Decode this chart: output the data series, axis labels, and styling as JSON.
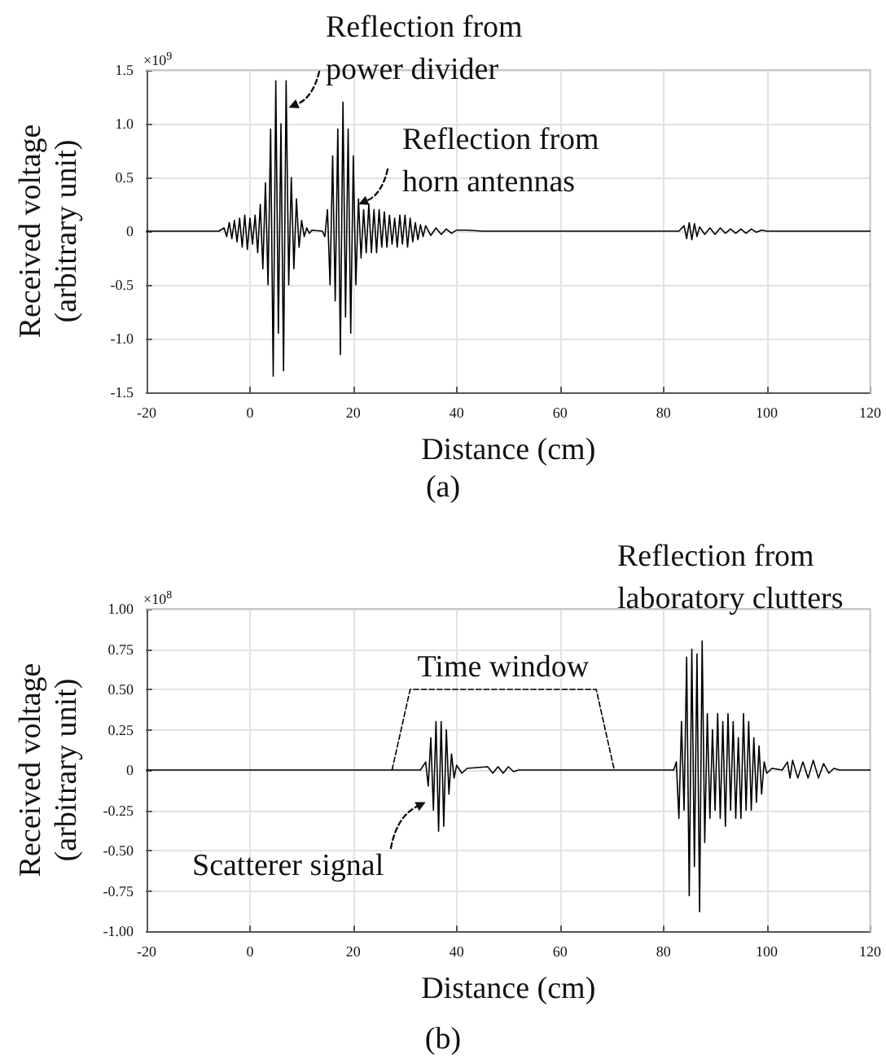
{
  "chart_data": [
    {
      "type": "line",
      "title": "(a)",
      "xlabel": "Distance (cm)",
      "ylabel": "Received voltage (arbitrary unit)",
      "xlim": [
        -20,
        120
      ],
      "xticks": [
        -20,
        0,
        20,
        40,
        60,
        80,
        100,
        120
      ],
      "ylim": [
        -1.5,
        1.5
      ],
      "yticks": [
        -1.5,
        {
          "value": -1,
          "label": "-1.0"
        },
        -0.5,
        0,
        0.5,
        {
          "value": 1,
          "label": "1.0"
        },
        1.5
      ],
      "grid": true,
      "marker": "none",
      "annotations": [
        "×10$^{9}$",
        {
          "text": "Reflection from power divider",
          "x": 7.5,
          "y": 1.15
        },
        {
          "text": "Reflection from horn antennas",
          "x": 21,
          "y": 0.25
        }
      ],
      "series": [
        {
          "color": "#000000",
          "x": [
            -20,
            -6,
            -5,
            -4.5,
            -4,
            -3.5,
            -3,
            -2.5,
            -2,
            -1.5,
            -1,
            -0.5,
            0,
            0.5,
            1,
            1.5,
            2,
            2.5,
            3,
            3.5,
            4,
            4.5,
            5,
            5.5,
            6,
            6.5,
            7,
            7.5,
            8,
            8.5,
            9,
            9.5,
            10,
            10.5,
            11,
            11.5,
            12,
            14,
            14.5,
            15,
            15.5,
            16,
            16.5,
            17,
            17.5,
            18,
            18.5,
            19,
            19.5,
            20,
            20.5,
            21,
            21.5,
            22,
            22.5,
            23,
            23.5,
            24,
            24.5,
            25,
            25.5,
            26,
            26.5,
            27,
            27.5,
            28,
            28.5,
            29,
            29.5,
            30,
            30.5,
            31,
            31.5,
            32,
            32.5,
            33,
            33.5,
            34,
            35,
            36,
            37,
            38,
            39,
            40,
            42,
            45,
            83,
            84,
            84.5,
            85,
            85.5,
            86,
            86.5,
            87,
            88,
            89,
            90,
            91,
            92,
            93,
            94,
            95,
            96,
            97,
            98,
            99,
            100,
            120
          ],
          "values": [
            0,
            0,
            0.03,
            -0.05,
            0.08,
            -0.07,
            0.1,
            -0.1,
            0.12,
            -0.15,
            0.15,
            -0.17,
            0.12,
            -0.12,
            0.15,
            -0.2,
            0.25,
            -0.35,
            0.45,
            -0.5,
            0.95,
            -1.35,
            1.4,
            -0.95,
            1.0,
            -1.3,
            1.4,
            -0.5,
            0.5,
            -0.35,
            0.3,
            -0.15,
            0.1,
            -0.05,
            0.03,
            -0.02,
            0.01,
            0,
            -0.05,
            0.2,
            -0.5,
            0.7,
            -0.65,
            0.95,
            -1.15,
            1.2,
            -0.8,
            0.95,
            -0.95,
            0.7,
            -0.5,
            0.3,
            -0.25,
            0.2,
            -0.2,
            0.25,
            -0.2,
            0.2,
            -0.2,
            0.2,
            -0.15,
            0.18,
            -0.15,
            0.15,
            -0.12,
            0.12,
            -0.15,
            0.15,
            -0.12,
            0.15,
            -0.15,
            0.12,
            -0.1,
            0.08,
            -0.08,
            0.06,
            -0.05,
            0.05,
            -0.04,
            0.03,
            -0.03,
            0.02,
            -0.02,
            0.01,
            0.01,
            0,
            0,
            0.05,
            -0.07,
            0.08,
            -0.08,
            0.07,
            -0.05,
            0.04,
            -0.03,
            0.03,
            -0.03,
            0.03,
            -0.02,
            0.02,
            -0.02,
            0.02,
            -0.02,
            0.02,
            -0.01,
            0.01,
            0,
            0
          ]
        }
      ]
    },
    {
      "type": "line",
      "title": "(b)",
      "xlabel": "Distance (cm)",
      "ylabel": "Received voltage (arbitrary unit)",
      "xlim": [
        -20,
        120
      ],
      "xticks": [
        -20,
        0,
        20,
        40,
        60,
        80,
        100,
        120
      ],
      "ylim": [
        -1,
        1
      ],
      "yticks": [
        {
          "value": -1,
          "label": "-1.00"
        },
        -0.75,
        {
          "value": -0.5,
          "label": "-0.50"
        },
        -0.25,
        0,
        0.25,
        {
          "value": 0.5,
          "label": "0.50"
        },
        0.75,
        {
          "value": 1,
          "label": "1.00"
        }
      ],
      "grid": true,
      "marker": "none",
      "annotations": [
        "×10$^{8}$",
        "Reflection from laboratory clutters",
        {
          "text": "Scatterer signal",
          "x": 34,
          "y": -0.2
        }
      ],
      "series": [
        {
          "color": "#000000",
          "x": [
            -20,
            33,
            34,
            34.5,
            35,
            35.5,
            36,
            36.5,
            37,
            37.5,
            38,
            38.5,
            39,
            39.5,
            40,
            41,
            42,
            46,
            47,
            48,
            49,
            50,
            51,
            52,
            82,
            82.5,
            83,
            83.5,
            84,
            84.5,
            85,
            85.5,
            86,
            86.5,
            87,
            87.5,
            88,
            88.5,
            89,
            89.5,
            90,
            90.5,
            91,
            91.5,
            92,
            92.5,
            93,
            93.5,
            94,
            94.5,
            95,
            95.5,
            96,
            96.5,
            97,
            97.5,
            98,
            98.5,
            99,
            99.5,
            100,
            101,
            103,
            104,
            104.5,
            105,
            106,
            107,
            108,
            109,
            110,
            111,
            112,
            113,
            114,
            120
          ],
          "values": [
            0,
            0,
            0.05,
            -0.1,
            0.2,
            -0.25,
            0.3,
            -0.38,
            0.3,
            -0.35,
            0.25,
            -0.15,
            0.1,
            -0.05,
            0.03,
            -0.02,
            0.01,
            0.02,
            -0.02,
            0.02,
            -0.02,
            0.02,
            -0.01,
            0,
            0,
            0.05,
            -0.3,
            0.3,
            -0.25,
            0.7,
            -0.78,
            0.75,
            -0.6,
            0.72,
            -0.88,
            0.8,
            -0.45,
            0.35,
            -0.3,
            0.25,
            -0.25,
            0.35,
            -0.3,
            0.3,
            -0.35,
            0.35,
            -0.25,
            0.3,
            -0.3,
            0.2,
            -0.3,
            0.35,
            -0.25,
            0.3,
            -0.25,
            0.2,
            -0.2,
            0.15,
            -0.15,
            0.05,
            -0.02,
            0.01,
            0,
            0.05,
            -0.05,
            0.06,
            -0.05,
            0.05,
            -0.05,
            0.06,
            -0.05,
            0.04,
            -0.02,
            0.01,
            0,
            0
          ]
        },
        {
          "name": "Time window",
          "color": "#000000",
          "line_style": "dashed",
          "x": [
            27.5,
            31,
            67,
            70.5
          ],
          "values": [
            0,
            0.5,
            0.5,
            0
          ]
        }
      ]
    }
  ]
}
